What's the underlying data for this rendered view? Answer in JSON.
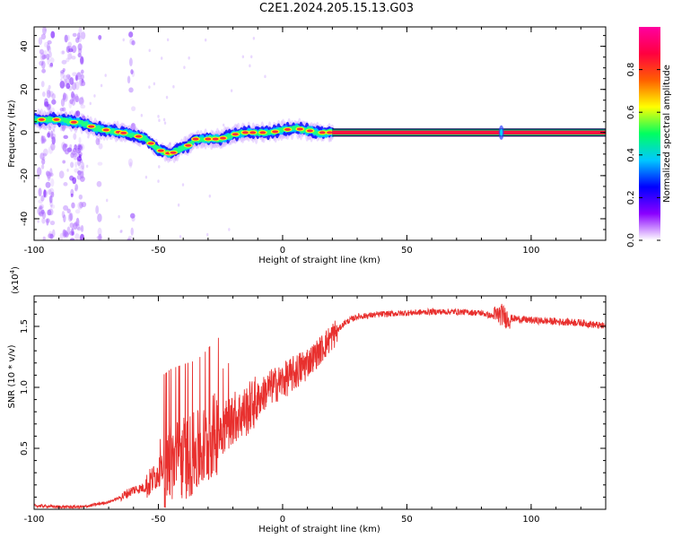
{
  "title": "C2E1.2024.205.15.13.G03",
  "chart_data": [
    {
      "type": "heatmap",
      "name": "spectrogram",
      "xlabel": "Height of straight line (km)",
      "ylabel": "Frequency (Hz)",
      "xlim": [
        -100,
        130
      ],
      "ylim": [
        -50,
        49
      ],
      "x_ticks": [
        -100,
        -50,
        0,
        50,
        100
      ],
      "y_ticks": [
        -40,
        -20,
        0,
        20,
        40
      ],
      "x_tick_labels": [
        "-100",
        "-50",
        "0",
        "50",
        "100"
      ],
      "y_tick_labels": [
        "-40",
        "-20",
        "0",
        "20",
        "40"
      ],
      "colorbar": {
        "label": "Normalized spectral amplitude",
        "range": [
          0,
          1
        ],
        "ticks": [
          0.0,
          0.2,
          0.4,
          0.6,
          0.8
        ],
        "tick_labels": [
          "0.0",
          "0.2",
          "0.4",
          "0.6",
          "0.8"
        ],
        "colormap": [
          "#ffffff",
          "#8a00ff",
          "#0000ff",
          "#00c8ff",
          "#00ff60",
          "#ffff00",
          "#ff6000",
          "#ff0040",
          "#ff00a0"
        ]
      },
      "ridge": {
        "description_points_x": [
          -100,
          -95,
          -90,
          -85,
          -80,
          -75,
          -70,
          -65,
          -60,
          -55,
          -50,
          -45,
          -42,
          -38,
          -35,
          -30,
          -25,
          -20,
          -15,
          -10,
          -5,
          0,
          5,
          10,
          15,
          20,
          130
        ],
        "description_points_y": [
          6,
          6,
          6,
          5,
          4,
          2,
          1,
          0,
          -1,
          -3,
          -8,
          -10,
          -8,
          -6,
          -3,
          -3,
          -3,
          -1,
          0,
          0,
          0,
          1,
          2,
          1,
          0,
          0,
          0
        ]
      },
      "carrier_frequency": 0,
      "carrier_start_x": 20,
      "spike_x": 88
    },
    {
      "type": "line",
      "name": "snr",
      "xlabel": "Height of straight line (km)",
      "ylabel": "SNR (10 * v/v)",
      "y_multiplier": "(x10^4)",
      "y_multiplier_base": "(x10",
      "y_multiplier_exp": "4",
      "y_multiplier_close": ")",
      "xlim": [
        -100,
        130
      ],
      "ylim": [
        0,
        1.75
      ],
      "x_ticks": [
        -100,
        -50,
        0,
        50,
        100
      ],
      "y_ticks": [
        0.5,
        1.0,
        1.5
      ],
      "x_tick_labels": [
        "-100",
        "-50",
        "0",
        "50",
        "100"
      ],
      "y_tick_labels": [
        "0.5",
        "1.0",
        "1.5"
      ],
      "color": "#e8302e",
      "series": [
        {
          "name": "SNR",
          "x": [
            -100,
            -90,
            -80,
            -70,
            -65,
            -60,
            -55,
            -50,
            -45,
            -40,
            -35,
            -32,
            -30,
            -28,
            -25,
            -20,
            -15,
            -10,
            -5,
            0,
            5,
            10,
            15,
            20,
            25,
            30,
            40,
            50,
            60,
            70,
            80,
            85,
            88,
            90,
            95,
            100,
            110,
            120,
            130
          ],
          "y": [
            0.03,
            0.02,
            0.02,
            0.06,
            0.1,
            0.16,
            0.18,
            0.3,
            0.38,
            0.42,
            0.45,
            0.5,
            0.55,
            0.6,
            0.65,
            0.75,
            0.8,
            0.9,
            1.0,
            1.05,
            1.12,
            1.2,
            1.3,
            1.42,
            1.53,
            1.58,
            1.6,
            1.61,
            1.62,
            1.62,
            1.61,
            1.58,
            1.6,
            1.57,
            1.56,
            1.55,
            1.54,
            1.53,
            1.5
          ]
        }
      ]
    }
  ]
}
